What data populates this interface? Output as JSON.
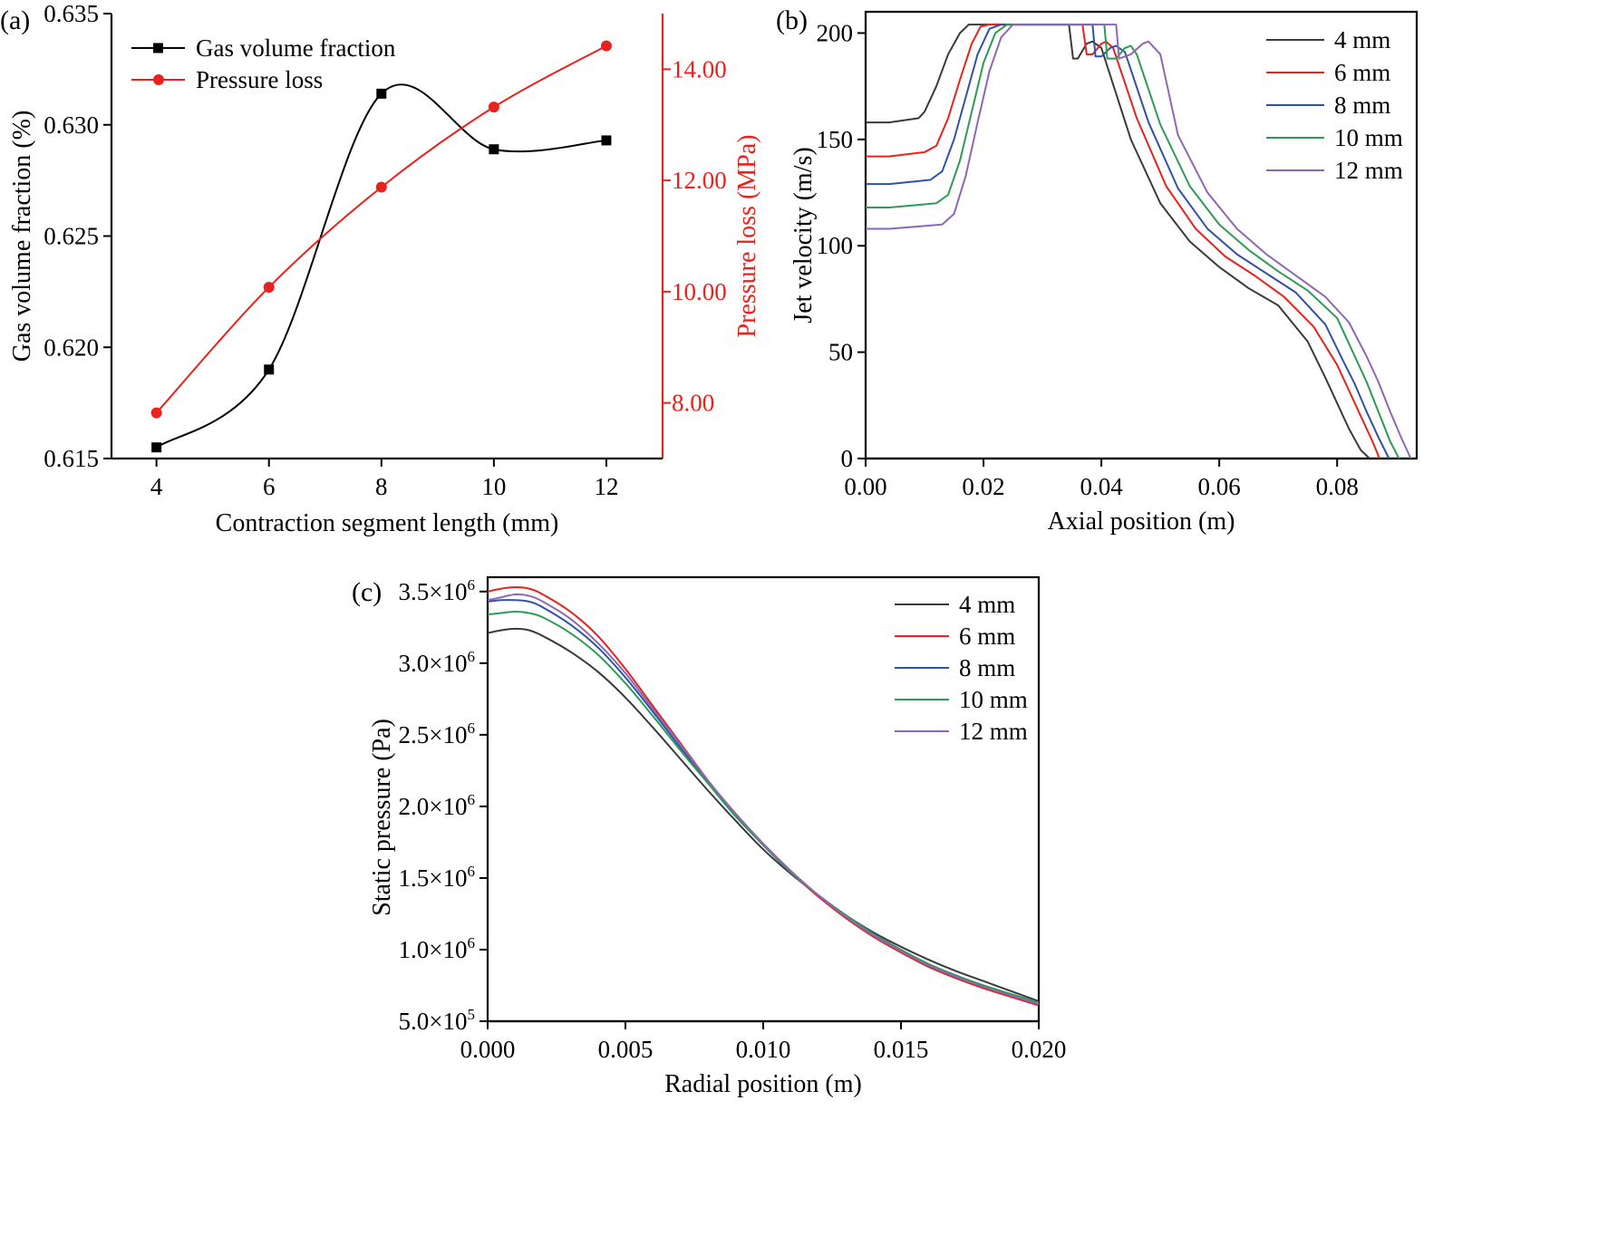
{
  "chart_data": [
    {
      "panel": "(a)",
      "type": "line",
      "xlabel": "Contraction segment length (mm)",
      "ylabel": "Gas volume fraction (%)",
      "ylabel_right": "Pressure loss (MPa)",
      "xlim": [
        3.2,
        13.0
      ],
      "ylim": [
        0.615,
        0.635
      ],
      "ylim_right": [
        7.0,
        15.0
      ],
      "xticks": [
        4,
        6,
        8,
        10,
        12
      ],
      "xtick_labels": [
        "4",
        "6",
        "8",
        "10",
        "12"
      ],
      "yticks": [
        0.615,
        0.62,
        0.625,
        0.63,
        0.635
      ],
      "ytick_labels": [
        "0.615",
        "0.620",
        "0.625",
        "0.630",
        "0.635"
      ],
      "yticks_right": [
        8,
        10,
        12,
        14
      ],
      "ytick_labels_right": [
        "8.00",
        "10.00",
        "12.00",
        "14.00"
      ],
      "legend_position": "top-left",
      "series": [
        {
          "name": "Gas volume fraction",
          "axis": "left",
          "color": "#000000",
          "marker": "square",
          "x": [
            4,
            6,
            8,
            10,
            12
          ],
          "values": [
            0.6155,
            0.619,
            0.6314,
            0.6289,
            0.6293
          ]
        },
        {
          "name": "Pressure loss",
          "axis": "right",
          "color": "#e8221c",
          "marker": "circle",
          "x": [
            4,
            6,
            8,
            10,
            12
          ],
          "values": [
            7.82,
            10.08,
            11.88,
            13.32,
            14.42
          ]
        }
      ]
    },
    {
      "panel": "(b)",
      "type": "line",
      "xlabel": "Axial position (m)",
      "ylabel": "Jet velocity (m/s)",
      "xlim": [
        0,
        0.0935
      ],
      "ylim": [
        0,
        210
      ],
      "xticks": [
        0,
        0.02,
        0.04,
        0.06,
        0.08
      ],
      "xtick_labels": [
        "0.00",
        "0.02",
        "0.04",
        "0.06",
        "0.08"
      ],
      "yticks": [
        0,
        50,
        100,
        150,
        200
      ],
      "ytick_labels": [
        "0",
        "50",
        "100",
        "150",
        "200"
      ],
      "legend_position": "top-right",
      "series": [
        {
          "name": "4 mm",
          "color": "#3a3a3a",
          "x": [
            0,
            0.004,
            0.009,
            0.01,
            0.012,
            0.014,
            0.016,
            0.0175,
            0.019,
            0.033,
            0.0345,
            0.0352,
            0.036,
            0.0375,
            0.0385,
            0.04,
            0.045,
            0.05,
            0.055,
            0.06,
            0.065,
            0.07,
            0.075,
            0.078,
            0.08,
            0.082,
            0.084,
            0.0855
          ],
          "values": [
            158,
            158,
            160,
            163,
            175,
            190,
            200,
            204,
            204,
            204,
            204,
            188,
            188,
            195,
            196,
            193,
            150,
            120,
            102,
            90,
            80,
            72,
            55,
            38,
            26,
            14,
            4,
            0
          ]
        },
        {
          "name": "6 mm",
          "color": "#e8221c",
          "x": [
            0,
            0.004,
            0.01,
            0.012,
            0.014,
            0.016,
            0.018,
            0.0195,
            0.021,
            0.035,
            0.0368,
            0.0375,
            0.0385,
            0.04,
            0.0408,
            0.042,
            0.046,
            0.051,
            0.056,
            0.061,
            0.066,
            0.071,
            0.076,
            0.08,
            0.082,
            0.084,
            0.086,
            0.0872
          ],
          "values": [
            142,
            142,
            144,
            147,
            160,
            178,
            195,
            203,
            204,
            204,
            204,
            190,
            190,
            195,
            196,
            193,
            160,
            128,
            108,
            95,
            86,
            76,
            62,
            44,
            32,
            20,
            8,
            0
          ]
        },
        {
          "name": "8 mm",
          "color": "#2f52a7",
          "x": [
            0,
            0.004,
            0.011,
            0.013,
            0.015,
            0.017,
            0.019,
            0.021,
            0.023,
            0.037,
            0.0385,
            0.039,
            0.04,
            0.0415,
            0.0425,
            0.044,
            0.048,
            0.053,
            0.058,
            0.063,
            0.068,
            0.073,
            0.078,
            0.081,
            0.083,
            0.085,
            0.087,
            0.0888
          ],
          "values": [
            129,
            129,
            131,
            135,
            150,
            170,
            190,
            202,
            204,
            204,
            204,
            189,
            189,
            193,
            194,
            191,
            158,
            127,
            108,
            96,
            87,
            78,
            63,
            46,
            35,
            22,
            10,
            0
          ]
        },
        {
          "name": "10 mm",
          "color": "#2e9a55",
          "x": [
            0,
            0.004,
            0.012,
            0.014,
            0.016,
            0.018,
            0.02,
            0.022,
            0.024,
            0.039,
            0.0405,
            0.041,
            0.0425,
            0.044,
            0.045,
            0.046,
            0.05,
            0.055,
            0.06,
            0.065,
            0.07,
            0.075,
            0.08,
            0.083,
            0.085,
            0.087,
            0.089,
            0.0905
          ],
          "values": [
            118,
            118,
            120,
            124,
            140,
            163,
            186,
            200,
            204,
            204,
            204,
            188,
            188,
            193,
            194,
            190,
            157,
            128,
            110,
            98,
            88,
            79,
            66,
            48,
            36,
            22,
            8,
            0
          ]
        },
        {
          "name": "12 mm",
          "color": "#8e67b3",
          "x": [
            0,
            0.004,
            0.013,
            0.015,
            0.017,
            0.019,
            0.021,
            0.023,
            0.025,
            0.041,
            0.0425,
            0.043,
            0.045,
            0.047,
            0.048,
            0.05,
            0.053,
            0.058,
            0.063,
            0.068,
            0.073,
            0.078,
            0.082,
            0.085,
            0.087,
            0.089,
            0.091,
            0.0925
          ],
          "values": [
            108,
            108,
            110,
            115,
            133,
            158,
            182,
            198,
            204,
            204,
            204,
            188,
            190,
            195,
            196,
            190,
            152,
            125,
            108,
            96,
            86,
            76,
            64,
            48,
            36,
            22,
            9,
            0
          ]
        }
      ]
    },
    {
      "panel": "(c)",
      "type": "line",
      "xlabel": "Radial position (m)",
      "ylabel": "Static pressure (Pa)",
      "xlim": [
        0,
        0.02
      ],
      "ylim": [
        500000,
        3600000
      ],
      "xticks": [
        0,
        0.005,
        0.01,
        0.015,
        0.02
      ],
      "xtick_labels": [
        "0.000",
        "0.005",
        "0.010",
        "0.015",
        "0.020"
      ],
      "yticks": [
        500000,
        1000000,
        1500000,
        2000000,
        2500000,
        3000000,
        3500000
      ],
      "ytick_mantissas": [
        "5.0×10",
        "1.0×10",
        "1.5×10",
        "2.0×10",
        "2.5×10",
        "3.0×10",
        "3.5×10"
      ],
      "ytick_exponents": [
        "5",
        "6",
        "6",
        "6",
        "6",
        "6",
        "6"
      ],
      "legend_position": "top-right",
      "series": [
        {
          "name": "4 mm",
          "color": "#3a3a3a",
          "x": [
            0,
            0.0005,
            0.001,
            0.0015,
            0.002,
            0.003,
            0.004,
            0.005,
            0.006,
            0.007,
            0.008,
            0.009,
            0.01,
            0.011,
            0.012,
            0.013,
            0.014,
            0.015,
            0.016,
            0.017,
            0.018,
            0.019,
            0.02
          ],
          "values": [
            3210000,
            3230000,
            3240000,
            3230000,
            3190000,
            3080000,
            2940000,
            2760000,
            2550000,
            2330000,
            2110000,
            1900000,
            1700000,
            1530000,
            1380000,
            1240000,
            1120000,
            1020000,
            930000,
            850000,
            780000,
            710000,
            640000
          ]
        },
        {
          "name": "6 mm",
          "color": "#e8221c",
          "x": [
            0,
            0.0005,
            0.001,
            0.0015,
            0.002,
            0.003,
            0.004,
            0.005,
            0.006,
            0.007,
            0.008,
            0.009,
            0.01,
            0.011,
            0.012,
            0.013,
            0.014,
            0.015,
            0.016,
            0.017,
            0.018,
            0.019,
            0.02
          ],
          "values": [
            3500000,
            3520000,
            3530000,
            3520000,
            3480000,
            3360000,
            3190000,
            2960000,
            2700000,
            2440000,
            2180000,
            1940000,
            1730000,
            1540000,
            1370000,
            1220000,
            1090000,
            980000,
            880000,
            800000,
            730000,
            670000,
            610000
          ]
        },
        {
          "name": "8 mm",
          "color": "#2f52a7",
          "x": [
            0,
            0.0005,
            0.001,
            0.0015,
            0.002,
            0.003,
            0.004,
            0.005,
            0.006,
            0.007,
            0.008,
            0.009,
            0.01,
            0.011,
            0.012,
            0.013,
            0.014,
            0.015,
            0.016,
            0.017,
            0.018,
            0.019,
            0.02
          ],
          "values": [
            3430000,
            3440000,
            3440000,
            3430000,
            3390000,
            3270000,
            3110000,
            2900000,
            2660000,
            2410000,
            2170000,
            1940000,
            1730000,
            1540000,
            1380000,
            1230000,
            1100000,
            990000,
            890000,
            810000,
            740000,
            680000,
            620000
          ]
        },
        {
          "name": "10 mm",
          "color": "#2e9a55",
          "x": [
            0,
            0.0005,
            0.001,
            0.0015,
            0.002,
            0.003,
            0.004,
            0.005,
            0.006,
            0.007,
            0.008,
            0.009,
            0.01,
            0.011,
            0.012,
            0.013,
            0.014,
            0.015,
            0.016,
            0.017,
            0.018,
            0.019,
            0.02
          ],
          "values": [
            3340000,
            3350000,
            3360000,
            3350000,
            3320000,
            3210000,
            3060000,
            2860000,
            2630000,
            2390000,
            2160000,
            1930000,
            1730000,
            1540000,
            1380000,
            1240000,
            1110000,
            1000000,
            900000,
            820000,
            750000,
            690000,
            630000
          ]
        },
        {
          "name": "12 mm",
          "color": "#8e67b3",
          "x": [
            0,
            0.0005,
            0.001,
            0.0015,
            0.002,
            0.003,
            0.004,
            0.005,
            0.006,
            0.007,
            0.008,
            0.009,
            0.01,
            0.011,
            0.012,
            0.013,
            0.014,
            0.015,
            0.016,
            0.017,
            0.018,
            0.019,
            0.02
          ],
          "values": [
            3440000,
            3460000,
            3480000,
            3470000,
            3430000,
            3310000,
            3140000,
            2930000,
            2680000,
            2430000,
            2180000,
            1950000,
            1740000,
            1550000,
            1380000,
            1230000,
            1100000,
            990000,
            890000,
            810000,
            740000,
            680000,
            620000
          ]
        }
      ]
    }
  ]
}
